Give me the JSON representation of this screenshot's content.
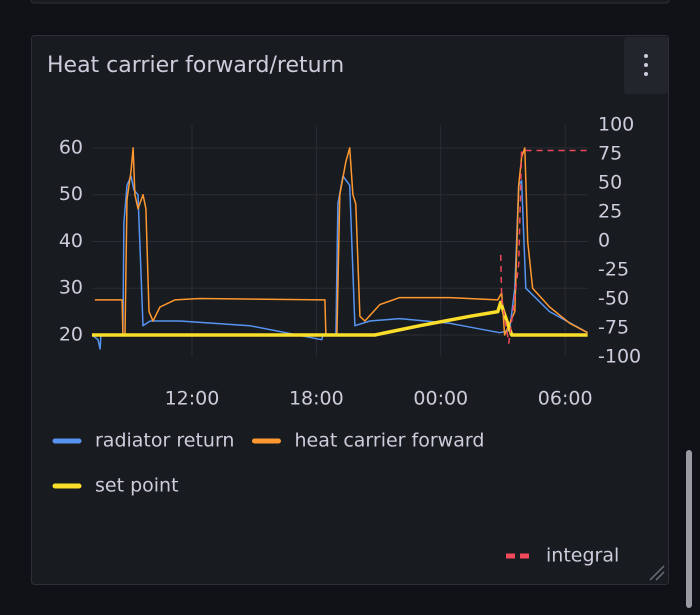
{
  "chart_data": {
    "type": "line",
    "title": "Heat carrier forward/return",
    "legend": "bottom",
    "grid": true,
    "xlim": [
      7.18,
      31.1
    ],
    "xticks": [
      {
        "value": 12,
        "label": "12:00"
      },
      {
        "value": 18,
        "label": "18:00"
      },
      {
        "value": 24,
        "label": "00:00"
      },
      {
        "value": 30,
        "label": "06:00"
      }
    ],
    "ylim": [
      15.3,
      64.9
    ],
    "yticks": [
      20,
      30,
      40,
      50,
      60
    ],
    "y2lim": [
      -100,
      100
    ],
    "y2ticks": [
      -100,
      -75,
      -50,
      -25,
      0,
      25,
      50,
      75,
      100
    ],
    "series": [
      {
        "name": "radiator return",
        "color": "#5794f2",
        "width": 1.5,
        "x": [
          7.18,
          7.47,
          7.57,
          7.61,
          8.67,
          8.72,
          8.87,
          9.06,
          9.2,
          9.4,
          9.64,
          9.98,
          11.42,
          14.79,
          18.26,
          18.31,
          18.94,
          19.04,
          19.28,
          19.61,
          19.86,
          20.58,
          22.02,
          24.43,
          26.84,
          27.32,
          27.57,
          27.76,
          27.9,
          28.1,
          29.25,
          31.08
        ],
        "values": [
          20,
          19,
          17,
          20,
          20,
          44,
          52,
          54,
          51,
          50,
          22,
          23,
          23,
          22,
          19,
          20,
          20,
          48,
          54,
          52,
          22,
          23,
          23.5,
          22.5,
          20.5,
          21,
          30,
          52,
          53,
          30,
          25,
          20.5
        ]
      },
      {
        "name": "heat carrier forward",
        "color": "#ff9830",
        "width": 1.5,
        "x": [
          7.32,
          8.63,
          8.67,
          8.77,
          8.87,
          9.06,
          9.16,
          9.25,
          9.4,
          9.64,
          9.78,
          9.93,
          10.12,
          10.46,
          11.18,
          12.38,
          18.41,
          18.46,
          18.99,
          19.13,
          19.42,
          19.61,
          19.76,
          19.9,
          20.1,
          20.34,
          21.06,
          22.02,
          24.43,
          26.75,
          26.94,
          27.08,
          27.57,
          27.76,
          27.9,
          28.05,
          28.19,
          28.43,
          29.25,
          30.22,
          31.08
        ],
        "values": [
          27.5,
          27.5,
          20,
          20,
          49,
          55,
          60,
          50,
          47,
          50,
          47,
          25,
          23,
          26,
          27.5,
          27.8,
          27.5,
          20,
          20,
          50,
          57,
          60,
          50,
          48,
          24,
          23,
          26.5,
          28,
          28,
          27.5,
          29,
          20,
          25,
          52,
          58,
          60,
          40,
          30,
          26,
          22.5,
          20.5
        ]
      },
      {
        "name": "set point",
        "color": "#fade2a",
        "width": 3.5,
        "x": [
          7.18,
          20.82,
          22.99,
          25.4,
          26.75,
          26.89,
          27.03,
          27.42,
          31.08
        ],
        "values": [
          20,
          20,
          22,
          24,
          25,
          27,
          25,
          20,
          20
        ]
      },
      {
        "name": "integral",
        "color": "#f2495c",
        "width": 1.5,
        "axis": "y2",
        "dashed": true,
        "x": [
          26.89,
          26.94,
          27.28,
          27.52,
          27.76,
          27.9,
          31.08
        ],
        "values": [
          -12,
          -50,
          -88,
          -55,
          -20,
          78,
          78
        ]
      }
    ]
  }
}
